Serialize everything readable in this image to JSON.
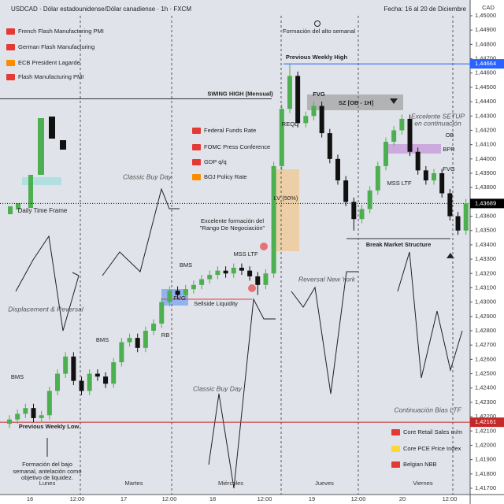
{
  "chart_data": {
    "type": "candlestick",
    "title": "USDCAD · Dólar estadounidense/Dólar canadiense · 1h · FXCM",
    "subtitle": "Fecha: 16 al 20 de Diciembre",
    "y_unit": "CAD",
    "up_color": "#4caf50",
    "down_color": "#111111",
    "ylim": [
      1.417,
      1.45
    ],
    "yticks": [
      {
        "value": 1.45,
        "label": "1,45000"
      },
      {
        "value": 1.449,
        "label": "1,44900"
      },
      {
        "value": 1.448,
        "label": "1,44800"
      },
      {
        "value": 1.447,
        "label": "1,44700"
      },
      {
        "value": 1.446,
        "label": "1,44600"
      },
      {
        "value": 1.445,
        "label": "1,44500"
      },
      {
        "value": 1.444,
        "label": "1,44400"
      },
      {
        "value": 1.443,
        "label": "1,44300"
      },
      {
        "value": 1.442,
        "label": "1,44200"
      },
      {
        "value": 1.441,
        "label": "1,44100"
      },
      {
        "value": 1.44,
        "label": "1,44000"
      },
      {
        "value": 1.439,
        "label": "1,43900"
      },
      {
        "value": 1.438,
        "label": "1,43800"
      },
      {
        "value": 1.437,
        "label": "1,43700"
      },
      {
        "value": 1.436,
        "label": "1,43600"
      },
      {
        "value": 1.435,
        "label": "1,43500"
      },
      {
        "value": 1.434,
        "label": "1,43400"
      },
      {
        "value": 1.433,
        "label": "1,43300"
      },
      {
        "value": 1.432,
        "label": "1,43200"
      },
      {
        "value": 1.431,
        "label": "1,43100"
      },
      {
        "value": 1.43,
        "label": "1,43000"
      },
      {
        "value": 1.429,
        "label": "1,42900"
      },
      {
        "value": 1.428,
        "label": "1,42800"
      },
      {
        "value": 1.427,
        "label": "1,42700"
      },
      {
        "value": 1.426,
        "label": "1,42600"
      },
      {
        "value": 1.425,
        "label": "1,42500"
      },
      {
        "value": 1.424,
        "label": "1,42400"
      },
      {
        "value": 1.423,
        "label": "1,42300"
      },
      {
        "value": 1.422,
        "label": "1,42200"
      },
      {
        "value": 1.421,
        "label": "1,42100"
      },
      {
        "value": 1.42,
        "label": "1,42000"
      },
      {
        "value": 1.419,
        "label": "1,41900"
      },
      {
        "value": 1.418,
        "label": "1,41800"
      },
      {
        "value": 1.417,
        "label": "1,41700"
      }
    ],
    "x_labels": [
      "16",
      "12:00",
      "17",
      "12:00",
      "18",
      "12:00",
      "19",
      "12:00",
      "20",
      "12:00"
    ],
    "day_labels": [
      "Lunes",
      "Martes",
      "Miércoles",
      "Jueves",
      "Viernes"
    ],
    "open": [
      1.4215,
      1.4218,
      1.4222,
      1.4226,
      1.4219,
      1.4221,
      1.4238,
      1.425,
      1.4262,
      1.4245,
      1.4238,
      1.425,
      1.4248,
      1.4243,
      1.4258,
      1.4272,
      1.4275,
      1.4268,
      1.428,
      1.4285,
      1.43,
      1.4308,
      1.4305,
      1.4309,
      1.4312,
      1.4316,
      1.4319,
      1.4322,
      1.432,
      1.4324,
      1.4322,
      1.4318,
      1.4312,
      1.432,
      1.4395,
      1.4435,
      1.4458,
      1.4425,
      1.443,
      1.4437,
      1.4418,
      1.44,
      1.4385,
      1.437,
      1.4358,
      1.4365,
      1.4378,
      1.4395,
      1.4412,
      1.442,
      1.4428,
      1.4405,
      1.4392,
      1.4385,
      1.439,
      1.4376,
      1.436,
      1.435
    ],
    "high": [
      1.4221,
      1.4225,
      1.4229,
      1.4229,
      1.4224,
      1.4241,
      1.4253,
      1.4265,
      1.4265,
      1.4248,
      1.4253,
      1.4253,
      1.4251,
      1.4261,
      1.4275,
      1.4278,
      1.4278,
      1.4283,
      1.4288,
      1.4303,
      1.4311,
      1.4311,
      1.4312,
      1.4315,
      1.4319,
      1.4322,
      1.4325,
      1.4325,
      1.4327,
      1.4327,
      1.4325,
      1.4321,
      1.4323,
      1.4398,
      1.4438,
      1.4466,
      1.4461,
      1.4433,
      1.444,
      1.444,
      1.4421,
      1.4403,
      1.4388,
      1.4373,
      1.4368,
      1.4381,
      1.4398,
      1.4415,
      1.4423,
      1.4431,
      1.4431,
      1.4408,
      1.4395,
      1.4393,
      1.4393,
      1.4379,
      1.4363,
      1.4372
    ],
    "low": [
      1.4212,
      1.4215,
      1.4219,
      1.4216,
      1.4216,
      1.4218,
      1.4235,
      1.4247,
      1.4242,
      1.4235,
      1.4235,
      1.4245,
      1.424,
      1.424,
      1.4255,
      1.4269,
      1.4265,
      1.4265,
      1.4277,
      1.4282,
      1.4297,
      1.4302,
      1.4302,
      1.4306,
      1.4309,
      1.4313,
      1.4316,
      1.4317,
      1.4317,
      1.4319,
      1.4315,
      1.4305,
      1.4309,
      1.4317,
      1.4392,
      1.4432,
      1.4422,
      1.4422,
      1.4427,
      1.4415,
      1.4397,
      1.4382,
      1.4367,
      1.435,
      1.4355,
      1.4362,
      1.4375,
      1.4392,
      1.4409,
      1.4417,
      1.4402,
      1.4389,
      1.4382,
      1.4382,
      1.4373,
      1.4357,
      1.4347,
      1.4347
    ],
    "close": [
      1.4218,
      1.4222,
      1.4226,
      1.4219,
      1.4221,
      1.4238,
      1.425,
      1.4262,
      1.4245,
      1.4238,
      1.425,
      1.4248,
      1.4243,
      1.4258,
      1.4272,
      1.4275,
      1.4268,
      1.428,
      1.4285,
      1.43,
      1.4308,
      1.4305,
      1.4309,
      1.4312,
      1.4316,
      1.4319,
      1.4322,
      1.432,
      1.4324,
      1.4322,
      1.4318,
      1.4312,
      1.432,
      1.4395,
      1.4435,
      1.4458,
      1.4425,
      1.443,
      1.4437,
      1.4418,
      1.44,
      1.4385,
      1.437,
      1.4358,
      1.4365,
      1.4378,
      1.4395,
      1.4412,
      1.442,
      1.4428,
      1.4405,
      1.4392,
      1.4385,
      1.439,
      1.4376,
      1.436,
      1.435,
      1.43689
    ],
    "levels": [
      {
        "name": "Previous Weekly High",
        "value": 1.44664,
        "label": "1,44664",
        "color": "#2962ff"
      },
      {
        "name": "SWING HIGH (Mensual)",
        "value": 1.4442,
        "color": "#333333"
      },
      {
        "value": 1.43689,
        "label": "1,43689",
        "color": "#000000"
      },
      {
        "name": "Previous Weekly Low",
        "value": 1.42161,
        "label": "1,42161",
        "color": "#c62828"
      }
    ],
    "events": [
      {
        "name": "French Flash Manufacturing PMI",
        "color": "#e53935"
      },
      {
        "name": "German Flash Manufacturing",
        "color": "#e53935"
      },
      {
        "name": "ECB President Lagarde",
        "color": "#fb8c00"
      },
      {
        "name": "Flash Manufacturing PMI",
        "color": "#e53935"
      },
      {
        "name": "Federal Funds Rate",
        "color": "#e53935"
      },
      {
        "name": "FOMC Press Conference",
        "color": "#e53935"
      },
      {
        "name": "GDP q/q",
        "color": "#e53935"
      },
      {
        "name": "BOJ Policy Rate",
        "color": "#fb8c00"
      },
      {
        "name": "Core Retail Sales m/m",
        "color": "#e53935"
      },
      {
        "name": "Core PCE Price Index",
        "color": "#fdd835"
      },
      {
        "name": "Belgian NBB",
        "color": "#e53935"
      }
    ],
    "annotations": [
      "Formación del alto semanal",
      "FVG",
      "SZ [OB - 1H]",
      "REQL",
      "Excelente SETUP",
      "en continuación",
      "OB",
      "BPR",
      "FVG",
      "MSS LTF",
      "LV (50%)",
      "Break Market Structure",
      "Classic Buy Day",
      "Daily Time Frame",
      "Excelente formación del",
      "\"Rango De Negociación\"",
      "MSS LTF",
      "BMS",
      "FVG",
      "Sellside Liquidity",
      "Reversal New York",
      "Displacement & Reversal",
      "BMS",
      "RB",
      "BMS",
      "Classic Buy Day",
      "Continuación Bias LTF",
      "Formación del bajo",
      "semanal, antelación como",
      "objetivo de liquidez."
    ]
  }
}
